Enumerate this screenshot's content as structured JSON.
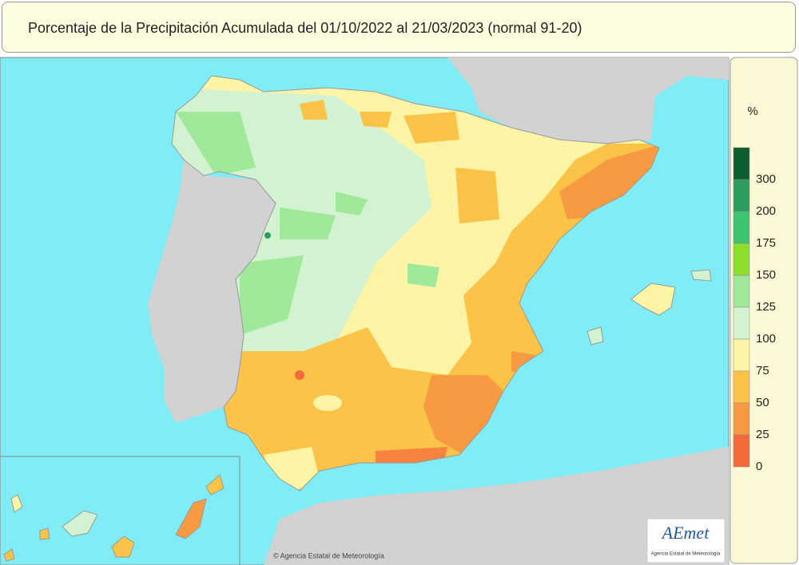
{
  "header": {
    "title": "Porcentaje de la Precipitación Acumulada del 01/10/2022 al 21/03/2023 (normal 91-20)"
  },
  "legend": {
    "unit": "%",
    "labels": [
      300,
      200,
      175,
      150,
      125,
      100,
      75,
      50,
      25,
      0
    ],
    "colors": [
      "#0b5e2e",
      "#2e9e5e",
      "#3cc46e",
      "#8edc2c",
      "#a0e89a",
      "#d2f2d2",
      "#fdf4a6",
      "#fbc347",
      "#f79a42",
      "#f36a3a"
    ]
  },
  "credit": "© Agencia Estatal de Meteorología",
  "logo": {
    "name": "AEmet",
    "subtitle": "Agencia Estatal de Meteorología"
  }
}
